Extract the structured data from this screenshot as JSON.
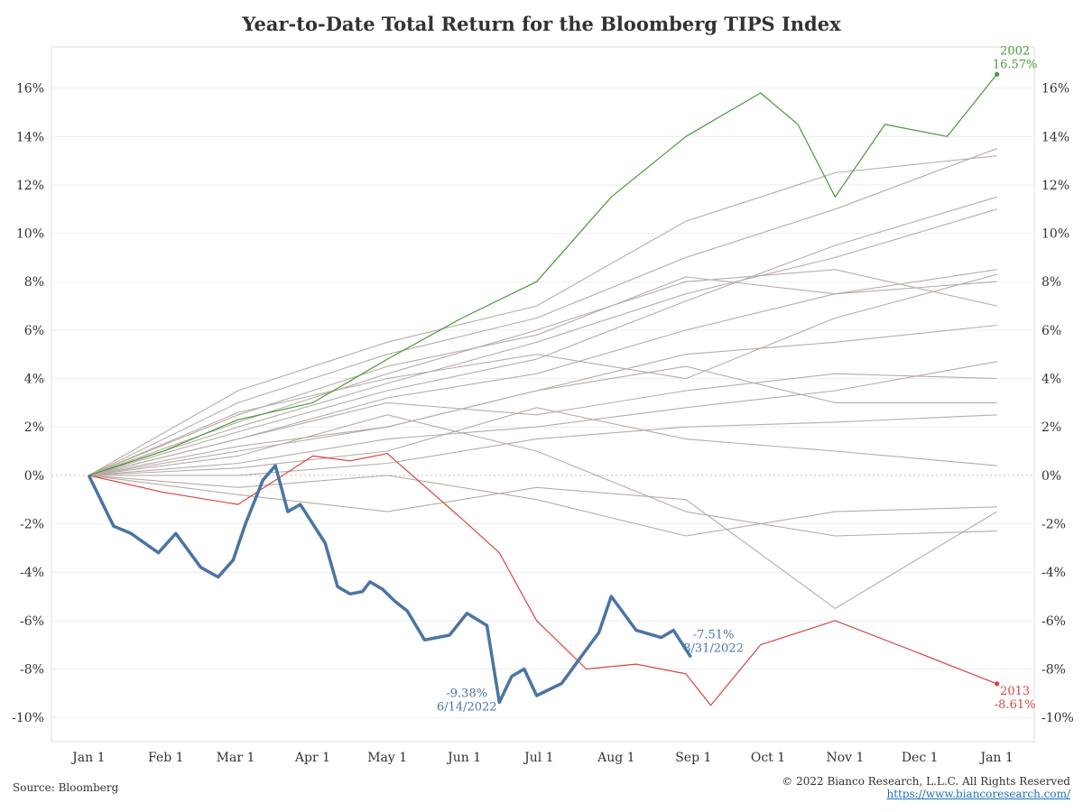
{
  "chart_data": {
    "type": "line",
    "title": "Year-to-Date Total Return for the Bloomberg TIPS Index",
    "xlabel": "",
    "ylabel": "",
    "x_ticks": [
      "Jan 1",
      "Feb 1",
      "Mar 1",
      "Apr 1",
      "May 1",
      "Jun 1",
      "Jul 1",
      "Aug 1",
      "Sep 1",
      "Oct 1",
      "Nov 1",
      "Dec 1",
      "Jan 1"
    ],
    "y_ticks": [
      "16%",
      "14%",
      "12%",
      "10%",
      "8%",
      "6%",
      "4%",
      "2%",
      "0%",
      "-2%",
      "-4%",
      "-6%",
      "-8%",
      "-10%"
    ],
    "y_tick_values": [
      16,
      14,
      12,
      10,
      8,
      6,
      4,
      2,
      0,
      -2,
      -4,
      -6,
      -8,
      -10
    ],
    "ylim": [
      -11,
      17.7
    ],
    "x_unit": "day of year",
    "xlim": [
      -15,
      380
    ],
    "grid": "horizontal",
    "colors": {
      "highlight": "#4a74a5",
      "best": "#4a9a3a",
      "worst": "#d64541",
      "other": "#b8aca6"
    },
    "series": [
      {
        "name": "2022",
        "role": "highlight",
        "x": [
          0,
          10,
          17,
          28,
          35,
          45,
          52,
          58,
          63,
          70,
          75,
          80,
          85,
          95,
          100,
          105,
          110,
          113,
          118,
          123,
          128,
          135,
          145,
          152,
          160,
          165,
          170,
          175,
          180,
          190,
          200,
          205,
          210,
          220,
          230,
          235,
          242
        ],
        "y": [
          0,
          -2.1,
          -2.4,
          -3.2,
          -2.4,
          -3.8,
          -4.2,
          -3.5,
          -2.0,
          -0.2,
          0.4,
          -1.5,
          -1.2,
          -2.8,
          -4.6,
          -4.9,
          -4.8,
          -4.4,
          -4.7,
          -5.2,
          -5.6,
          -6.8,
          -6.6,
          -5.7,
          -6.2,
          -9.38,
          -8.3,
          -8.0,
          -9.1,
          -8.6,
          -7.2,
          -6.5,
          -5.0,
          -6.4,
          -6.7,
          -6.4,
          -7.51
        ]
      },
      {
        "name": "2002",
        "role": "best",
        "x": [
          0,
          30,
          60,
          90,
          120,
          150,
          180,
          210,
          240,
          270,
          285,
          300,
          320,
          345,
          365
        ],
        "y": [
          0,
          1.0,
          2.3,
          3.0,
          4.8,
          6.5,
          8.0,
          11.5,
          14.0,
          15.8,
          14.5,
          11.5,
          14.5,
          14.0,
          16.57
        ]
      },
      {
        "name": "2013",
        "role": "worst",
        "x": [
          0,
          30,
          60,
          90,
          105,
          120,
          150,
          165,
          180,
          200,
          220,
          240,
          250,
          270,
          300,
          330,
          365
        ],
        "y": [
          0,
          -0.7,
          -1.2,
          0.8,
          0.6,
          0.9,
          -1.8,
          -3.2,
          -6.0,
          -8.0,
          -7.8,
          -8.2,
          -9.5,
          -7.0,
          -6.0,
          -7.2,
          -8.61
        ]
      },
      {
        "name": "",
        "role": "other",
        "x": [
          0,
          60,
          120,
          180,
          240,
          300,
          365
        ],
        "y": [
          0,
          2.5,
          4.5,
          5.8,
          8.2,
          7.5,
          8.5
        ]
      },
      {
        "name": "",
        "role": "other",
        "x": [
          0,
          60,
          120,
          180,
          240,
          300,
          365
        ],
        "y": [
          0,
          1.8,
          3.5,
          4.8,
          7.2,
          9.5,
          11.5
        ]
      },
      {
        "name": "",
        "role": "other",
        "x": [
          0,
          60,
          120,
          180,
          240,
          300,
          365
        ],
        "y": [
          0,
          3.0,
          5.0,
          6.5,
          9.0,
          11.0,
          13.5
        ]
      },
      {
        "name": "",
        "role": "other",
        "x": [
          0,
          60,
          120,
          180,
          240,
          300,
          365
        ],
        "y": [
          0,
          1.0,
          2.0,
          3.5,
          5.0,
          5.5,
          6.2
        ]
      },
      {
        "name": "",
        "role": "other",
        "x": [
          0,
          60,
          120,
          180,
          240,
          300,
          365
        ],
        "y": [
          0,
          0.5,
          1.5,
          2.0,
          2.8,
          3.5,
          4.7
        ]
      },
      {
        "name": "",
        "role": "other",
        "x": [
          0,
          60,
          120,
          180,
          240,
          300,
          365
        ],
        "y": [
          0,
          0.0,
          0.5,
          1.5,
          2.0,
          2.2,
          2.5
        ]
      },
      {
        "name": "",
        "role": "other",
        "x": [
          0,
          60,
          120,
          180,
          240,
          300,
          365
        ],
        "y": [
          0,
          -0.5,
          0.0,
          -1.0,
          -2.5,
          -1.5,
          -1.3
        ]
      },
      {
        "name": "",
        "role": "other",
        "x": [
          0,
          60,
          120,
          180,
          240,
          300,
          365
        ],
        "y": [
          0,
          2.0,
          3.8,
          5.5,
          7.5,
          9.0,
          11.0
        ]
      },
      {
        "name": "",
        "role": "other",
        "x": [
          0,
          60,
          120,
          180,
          240,
          300,
          365
        ],
        "y": [
          0,
          1.5,
          3.0,
          2.5,
          3.5,
          4.2,
          4.0
        ]
      },
      {
        "name": "",
        "role": "other",
        "x": [
          0,
          60,
          120,
          180,
          240,
          300,
          365
        ],
        "y": [
          0,
          2.2,
          4.2,
          6.0,
          8.0,
          8.5,
          7.0
        ]
      },
      {
        "name": "",
        "role": "other",
        "x": [
          0,
          60,
          120,
          180,
          240,
          300,
          365
        ],
        "y": [
          0,
          0.8,
          2.5,
          1.0,
          -1.5,
          -2.5,
          -2.3
        ]
      },
      {
        "name": "",
        "role": "other",
        "x": [
          0,
          60,
          120,
          180,
          240,
          300,
          365
        ],
        "y": [
          0,
          1.2,
          2.0,
          3.5,
          4.5,
          3.0,
          3.0
        ]
      },
      {
        "name": "",
        "role": "other",
        "x": [
          0,
          60,
          120,
          180,
          240,
          300,
          365
        ],
        "y": [
          0,
          -0.8,
          -1.5,
          -0.5,
          -1.0,
          -5.5,
          -1.5
        ]
      },
      {
        "name": "",
        "role": "other",
        "x": [
          0,
          60,
          120,
          180,
          240,
          300,
          365
        ],
        "y": [
          0,
          0.3,
          1.0,
          2.8,
          1.5,
          1.0,
          0.4
        ]
      },
      {
        "name": "",
        "role": "other",
        "x": [
          0,
          60,
          120,
          180,
          240,
          300,
          365
        ],
        "y": [
          0,
          2.6,
          4.0,
          5.0,
          4.0,
          6.5,
          8.3
        ]
      },
      {
        "name": "",
        "role": "other",
        "x": [
          0,
          60,
          120,
          180,
          240,
          300,
          365
        ],
        "y": [
          0,
          1.5,
          3.2,
          4.2,
          6.0,
          7.5,
          8.0
        ]
      },
      {
        "name": "",
        "role": "other",
        "x": [
          0,
          60,
          120,
          180,
          240,
          300,
          365
        ],
        "y": [
          0,
          3.5,
          5.5,
          7.0,
          10.5,
          12.5,
          13.2
        ]
      }
    ],
    "annotations": [
      {
        "series": "2002",
        "lines": [
          "2002",
          "16.57%"
        ],
        "x": 365,
        "y": 16.57,
        "color": "best"
      },
      {
        "series": "2013",
        "lines": [
          "2013",
          "-8.61%"
        ],
        "x": 365,
        "y": -8.61,
        "color": "worst"
      },
      {
        "series": "2022",
        "lines": [
          "-7.51%",
          "8/31/2022"
        ],
        "x": 242,
        "y": -7.51,
        "color": "highlight"
      },
      {
        "series": "2022",
        "lines": [
          "-9.38%",
          "6/14/2022"
        ],
        "x": 165,
        "y": -9.38,
        "color": "highlight"
      }
    ]
  },
  "footer": {
    "source": "Source: Bloomberg",
    "copyright": "© 2022 Bianco Research, L.L.C. All Rights Reserved",
    "website": "https://www.biancoresearch.com/"
  }
}
